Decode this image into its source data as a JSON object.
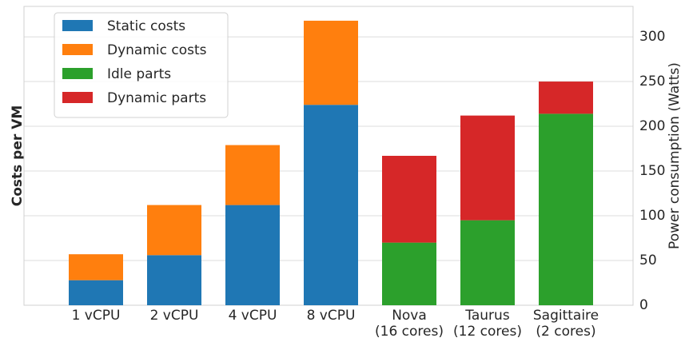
{
  "chart_data": {
    "type": "stacked-bar",
    "ylabel": "Costs per VM",
    "y2label": "Power consumption (Watts)",
    "categories": [
      [
        "1 vCPU"
      ],
      [
        "2 vCPU"
      ],
      [
        "4 vCPU"
      ],
      [
        "8 vCPU"
      ],
      [
        "Nova",
        "(16 cores)"
      ],
      [
        "Taurus",
        "(12 cores)"
      ],
      [
        "Sagittaire",
        "(2 cores)"
      ]
    ],
    "series": [
      {
        "name": "Static costs",
        "color": "#1f77b4",
        "values": [
          28,
          56,
          112,
          224,
          null,
          null,
          null
        ]
      },
      {
        "name": "Dynamic costs",
        "color": "#ff7f0e",
        "values": [
          29,
          56,
          67,
          94,
          null,
          null,
          null
        ]
      },
      {
        "name": "Idle parts",
        "color": "#2ca02c",
        "values": [
          null,
          null,
          null,
          null,
          70,
          95,
          214
        ]
      },
      {
        "name": "Dynamic parts",
        "color": "#d62728",
        "values": [
          null,
          null,
          null,
          null,
          97,
          117,
          36
        ]
      }
    ],
    "ylim": [
      0,
      334
    ],
    "yticks": [
      0,
      50,
      100,
      150,
      200,
      250,
      300
    ],
    "grid": true,
    "legend": "upper left"
  }
}
